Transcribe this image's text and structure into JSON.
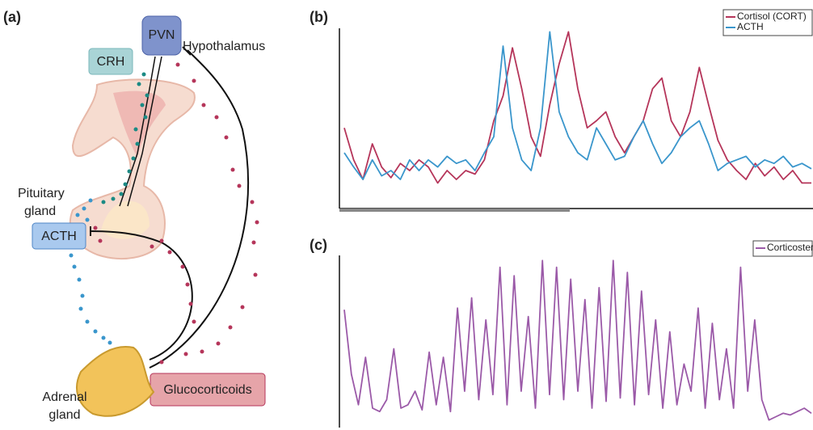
{
  "panels": [
    "(a)",
    "(b)",
    "(c)"
  ],
  "diagram": {
    "pvn": "PVN",
    "hypothalamus": "Hypothalamus",
    "crh": "CRH",
    "pituitary": [
      "Pituitary",
      "gland"
    ],
    "acth": "ACTH",
    "adrenal": [
      "Adrenal",
      "gland"
    ],
    "glucocorticoids": "Glucocorticoids"
  },
  "chart_data": [
    {
      "type": "line",
      "ylim": [
        0,
        100
      ],
      "series": [
        {
          "name": "Cortisol (CORT)",
          "color": "#b5355a",
          "values": [
            44,
            26,
            15,
            35,
            22,
            16,
            24,
            20,
            26,
            22,
            13,
            20,
            15,
            20,
            18,
            26,
            48,
            62,
            89,
            66,
            39,
            28,
            57,
            80,
            98,
            66,
            44,
            48,
            53,
            39,
            30,
            39,
            48,
            66,
            72,
            48,
            39,
            53,
            78,
            57,
            37,
            26,
            20,
            15,
            24,
            17,
            22,
            15,
            20,
            13,
            13
          ]
        },
        {
          "name": "ACTH",
          "color": "#3a96cc",
          "values": [
            30,
            22,
            15,
            26,
            17,
            20,
            15,
            26,
            20,
            26,
            22,
            28,
            24,
            26,
            20,
            30,
            39,
            90,
            44,
            26,
            20,
            44,
            98,
            53,
            39,
            30,
            26,
            44,
            35,
            26,
            28,
            39,
            48,
            35,
            24,
            30,
            39,
            44,
            48,
            35,
            20,
            24,
            26,
            28,
            22,
            26,
            24,
            28,
            22,
            24,
            21
          ]
        }
      ]
    },
    {
      "type": "line",
      "ylim": [
        0,
        100
      ],
      "series": [
        {
          "name": "Corticosterone",
          "color": "#9b5aa8",
          "values": [
            68,
            30,
            12,
            40,
            10,
            8,
            15,
            45,
            10,
            12,
            20,
            9,
            43,
            12,
            40,
            8,
            69,
            20,
            75,
            15,
            62,
            18,
            93,
            12,
            88,
            20,
            64,
            10,
            97,
            18,
            93,
            15,
            86,
            20,
            74,
            10,
            81,
            14,
            97,
            16,
            90,
            12,
            79,
            18,
            62,
            10,
            55,
            12,
            36,
            20,
            69,
            10,
            60,
            15,
            45,
            10,
            93,
            20,
            62,
            15,
            3,
            5,
            7,
            6,
            8,
            10,
            7
          ]
        }
      ]
    }
  ]
}
